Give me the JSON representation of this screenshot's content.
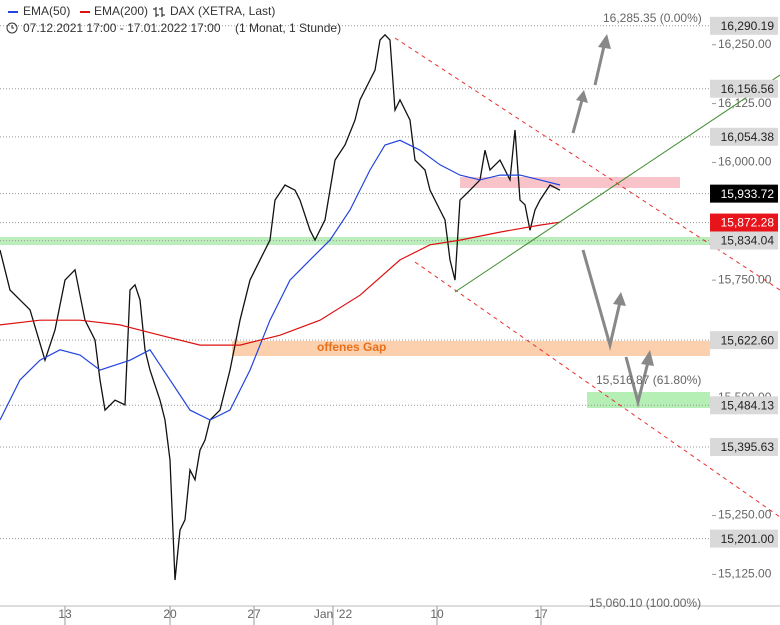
{
  "chart_data": {
    "type": "line",
    "legend": [
      "EMA(50)",
      "EMA(200)",
      "DAX (XETRA, Last)"
    ],
    "subtitle": "07.12.2021 17:00 - 17.01.2022 17:00",
    "period": "(1 Monat, 1 Stunde)",
    "xlim": [
      0,
      35
    ],
    "ylim": [
      15060,
      16345
    ],
    "xticks": [
      {
        "value": 3.25,
        "label": "13"
      },
      {
        "value": 8.5,
        "label": "20"
      },
      {
        "value": 12.7,
        "label": "27"
      },
      {
        "value": 16.65,
        "label": "Jan '22"
      },
      {
        "value": 21.85,
        "label": "10"
      },
      {
        "value": 27.05,
        "label": "17"
      }
    ],
    "yticks": [
      {
        "value": 16250,
        "label": "16,250.00"
      },
      {
        "value": 16125,
        "label": "16,125.00"
      },
      {
        "value": 16000,
        "label": "16,000.00"
      },
      {
        "value": 15750,
        "label": "15,750.00"
      },
      {
        "value": 15500,
        "label": "15,500.00"
      },
      {
        "value": 15250,
        "label": "15,250.00"
      },
      {
        "value": 15125,
        "label": "15,125.00"
      }
    ],
    "series": [
      {
        "name": "DAX (XETRA, Last)",
        "color": "#111111",
        "x": [
          0,
          0.5,
          1,
          1.5,
          2.25,
          2.75,
          3.25,
          3.75,
          4.25,
          4.75,
          5,
          5.25,
          5.75,
          6.25,
          6.5,
          6.75,
          7,
          7.25,
          7.5,
          8,
          8.25,
          8.5,
          8.75,
          9,
          9.25,
          9.5,
          9.75,
          10,
          10.25,
          10.5,
          11,
          11.5,
          12,
          12.5,
          13,
          13.5,
          13.75,
          14.25,
          14.75,
          15,
          15.5,
          15.75,
          16.25,
          16.75,
          17.25,
          17.75,
          18,
          18.5,
          18.75,
          19,
          19.25,
          19.5,
          19.75,
          20,
          20.5,
          20.75,
          21.25,
          21.5,
          22,
          22.25,
          22.5,
          22.75,
          23,
          23.5,
          24,
          24.25,
          24.5,
          25,
          25.5,
          25.75,
          26,
          26.25,
          26.5,
          26.75,
          27,
          27.5,
          28
        ],
        "values": [
          15814,
          15729,
          15708,
          15687,
          15580,
          15644,
          15750,
          15772,
          15665,
          15623,
          15538,
          15474,
          15495,
          15485,
          15729,
          15740,
          15708,
          15602,
          15559,
          15495,
          15453,
          15368,
          15113,
          15219,
          15241,
          15347,
          15326,
          15389,
          15410,
          15453,
          15474,
          15559,
          15665,
          15750,
          15793,
          15835,
          15920,
          15952,
          15941,
          15920,
          15856,
          15835,
          15878,
          16005,
          16037,
          16090,
          16133,
          16175,
          16196,
          16260,
          16271,
          16260,
          16111,
          16133,
          16090,
          16005,
          15984,
          15941,
          15899,
          15878,
          15793,
          15750,
          15920,
          15941,
          15963,
          16026,
          15984,
          16005,
          15963,
          16069,
          15920,
          15910,
          15856,
          15899,
          15920,
          15952,
          15941
        ]
      },
      {
        "name": "EMA(50)",
        "color": "#2244dd",
        "x": [
          0,
          1,
          2,
          3,
          4,
          5,
          6.5,
          7.5,
          8.5,
          9.5,
          10.5,
          11.5,
          12.5,
          13.5,
          14.5,
          15.5,
          16.5,
          17.5,
          18.5,
          19.25,
          20,
          21,
          22,
          23,
          24,
          25,
          26,
          27,
          28
        ],
        "values": [
          15453,
          15538,
          15580,
          15602,
          15591,
          15559,
          15580,
          15602,
          15538,
          15474,
          15453,
          15474,
          15559,
          15665,
          15750,
          15793,
          15835,
          15899,
          15984,
          16037,
          16047,
          16026,
          15995,
          15973,
          15963,
          15973,
          15973,
          15963,
          15952
        ]
      },
      {
        "name": "EMA(200)",
        "color": "#dd1111",
        "x": [
          0,
          2,
          4,
          6,
          8,
          10,
          12,
          14,
          16,
          18,
          20,
          21.5,
          23,
          25,
          27,
          28
        ],
        "values": [
          15655,
          15665,
          15665,
          15655,
          15633,
          15612,
          15612,
          15633,
          15665,
          15718,
          15793,
          15825,
          15835,
          15852,
          15867,
          15873
        ]
      }
    ],
    "levels": [
      {
        "value": 16290.19,
        "label": "16,290.19",
        "color": "#d9d9d9"
      },
      {
        "value": 16156.56,
        "label": "16,156.56",
        "color": "#d9d9d9"
      },
      {
        "value": 16054.38,
        "label": "16,054.38",
        "color": "#d9d9d9"
      },
      {
        "value": 15933.72,
        "label": "15,933.72",
        "color": "#000000"
      },
      {
        "value": 15872.28,
        "label": "15,872.28",
        "color": "#e8141b"
      },
      {
        "value": 15834.04,
        "label": "15,834.04",
        "color": "#d9d9d9"
      },
      {
        "value": 15622.6,
        "label": "15,622.60",
        "color": "#d9d9d9"
      },
      {
        "value": 15484.13,
        "label": "15,484.13",
        "color": "#d9d9d9"
      },
      {
        "value": 15395.63,
        "label": "15,395.63",
        "color": "#d9d9d9"
      },
      {
        "value": 15201.0,
        "label": "15,201.00",
        "color": "#d9d9d9"
      }
    ],
    "annotations": [
      "16,285.35 (0.00%)",
      "15,516.87 (61.80%)",
      "15,060.10 (100.00%)",
      "offenes Gap"
    ]
  }
}
